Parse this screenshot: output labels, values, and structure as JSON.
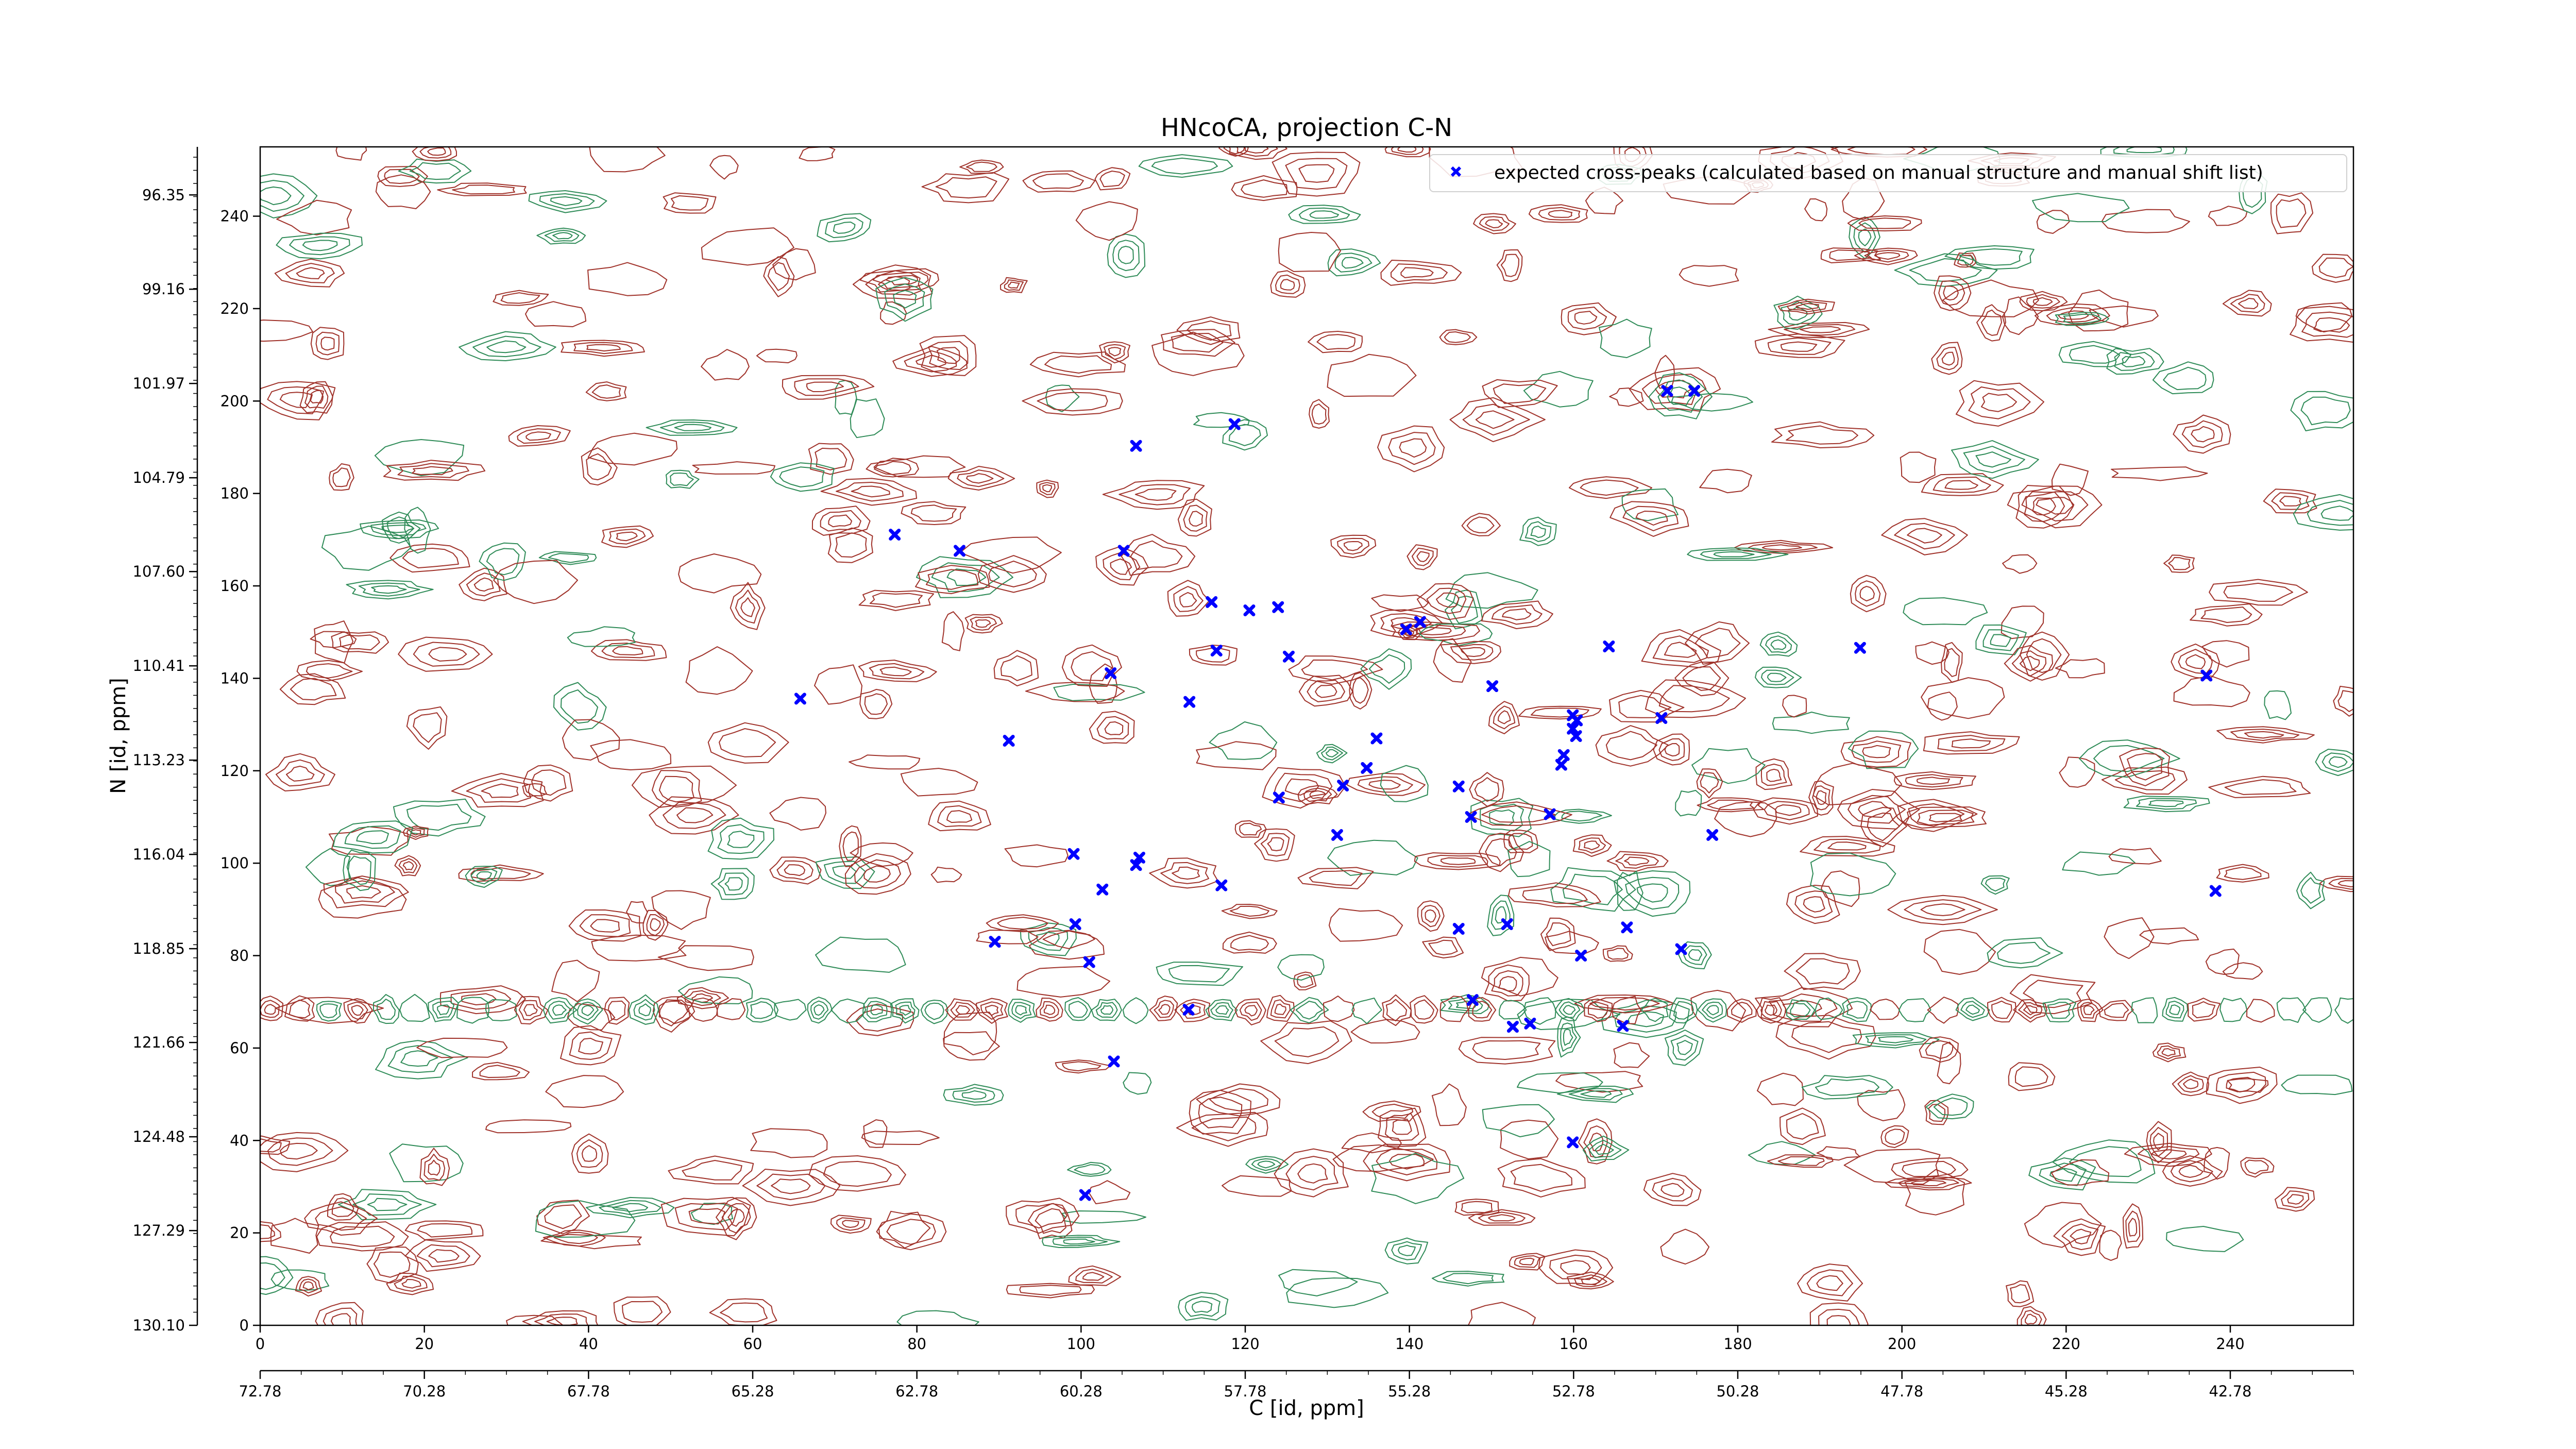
{
  "chart_data": {
    "type": "scatter",
    "title": "HNcoCA, projection C-N",
    "xlabel": "C [id, ppm]",
    "ylabel": "N [id, ppm]",
    "xlim": [
      0,
      255
    ],
    "ylim": [
      0,
      255
    ],
    "x_ticks": [
      0,
      20,
      40,
      60,
      80,
      100,
      120,
      140,
      160,
      180,
      200,
      220,
      240
    ],
    "y_ticks": [
      0,
      20,
      40,
      60,
      80,
      100,
      120,
      140,
      160,
      180,
      200,
      220,
      240
    ],
    "x_ppm_ticks": [
      {
        "pos": 0,
        "label": "72.78"
      },
      {
        "pos": 20,
        "label": "70.28"
      },
      {
        "pos": 40,
        "label": "67.78"
      },
      {
        "pos": 60,
        "label": "65.28"
      },
      {
        "pos": 80,
        "label": "62.78"
      },
      {
        "pos": 100,
        "label": "60.28"
      },
      {
        "pos": 120,
        "label": "57.78"
      },
      {
        "pos": 140,
        "label": "55.28"
      },
      {
        "pos": 160,
        "label": "52.78"
      },
      {
        "pos": 180,
        "label": "50.28"
      },
      {
        "pos": 200,
        "label": "47.78"
      },
      {
        "pos": 220,
        "label": "45.28"
      },
      {
        "pos": 240,
        "label": "42.78"
      }
    ],
    "y_ppm_ticks": [
      {
        "pos": 0,
        "label": "130.10"
      },
      {
        "pos": 20.5,
        "label": "127.29"
      },
      {
        "pos": 40.8,
        "label": "124.48"
      },
      {
        "pos": 61.2,
        "label": "121.66"
      },
      {
        "pos": 81.5,
        "label": "118.85"
      },
      {
        "pos": 101.9,
        "label": "116.04"
      },
      {
        "pos": 122.3,
        "label": "113.23"
      },
      {
        "pos": 142.7,
        "label": "110.41"
      },
      {
        "pos": 163.1,
        "label": "107.60"
      },
      {
        "pos": 183.4,
        "label": "104.79"
      },
      {
        "pos": 203.8,
        "label": "101.97"
      },
      {
        "pos": 224.2,
        "label": "99.16"
      },
      {
        "pos": 244.6,
        "label": "96.35"
      }
    ],
    "legend": {
      "position": "top-right",
      "entries": [
        {
          "label": "expected cross-peaks (calculated based on manual structure and manual shift list)",
          "color": "#0000ff",
          "marker": "x"
        }
      ]
    },
    "series": [
      {
        "color": "#0000ff",
        "points": [
          [
            171.4,
            202.2
          ],
          [
            174.7,
            202.2
          ],
          [
            118.7,
            195.0
          ],
          [
            106.7,
            190.3
          ],
          [
            77.3,
            171.1
          ],
          [
            85.2,
            167.6
          ],
          [
            105.2,
            167.6
          ],
          [
            115.9,
            156.5
          ],
          [
            120.5,
            154.7
          ],
          [
            124.0,
            155.4
          ],
          [
            139.6,
            150.6
          ],
          [
            141.3,
            152.2
          ],
          [
            116.5,
            146.0
          ],
          [
            125.3,
            144.7
          ],
          [
            164.3,
            146.9
          ],
          [
            194.9,
            146.6
          ],
          [
            103.6,
            141.1
          ],
          [
            237.1,
            140.6
          ],
          [
            65.8,
            135.6
          ],
          [
            113.2,
            134.9
          ],
          [
            150.1,
            138.3
          ],
          [
            159.9,
            132.0
          ],
          [
            160.4,
            130.9
          ],
          [
            159.9,
            129.1
          ],
          [
            170.7,
            131.4
          ],
          [
            91.2,
            126.5
          ],
          [
            136.0,
            127.0
          ],
          [
            160.3,
            127.5
          ],
          [
            158.8,
            123.4
          ],
          [
            158.5,
            121.3
          ],
          [
            134.8,
            120.6
          ],
          [
            131.9,
            116.8
          ],
          [
            146.0,
            116.6
          ],
          [
            124.1,
            114.2
          ],
          [
            157.1,
            110.6
          ],
          [
            147.5,
            110.0
          ],
          [
            131.2,
            106.1
          ],
          [
            176.9,
            106.1
          ],
          [
            99.1,
            102.0
          ],
          [
            107.1,
            101.2
          ],
          [
            106.7,
            99.6
          ],
          [
            117.1,
            95.2
          ],
          [
            238.2,
            94.0
          ],
          [
            102.6,
            94.3
          ],
          [
            99.3,
            86.8
          ],
          [
            146.0,
            85.8
          ],
          [
            151.9,
            86.8
          ],
          [
            166.5,
            86.1
          ],
          [
            89.5,
            83.0
          ],
          [
            173.1,
            81.4
          ],
          [
            101.0,
            78.6
          ],
          [
            160.9,
            80.0
          ],
          [
            147.7,
            70.4
          ],
          [
            113.1,
            68.3
          ],
          [
            152.6,
            64.6
          ],
          [
            154.7,
            65.3
          ],
          [
            166.0,
            64.8
          ],
          [
            104.0,
            57.1
          ],
          [
            159.9,
            39.6
          ],
          [
            100.5,
            28.2
          ]
        ]
      }
    ]
  }
}
